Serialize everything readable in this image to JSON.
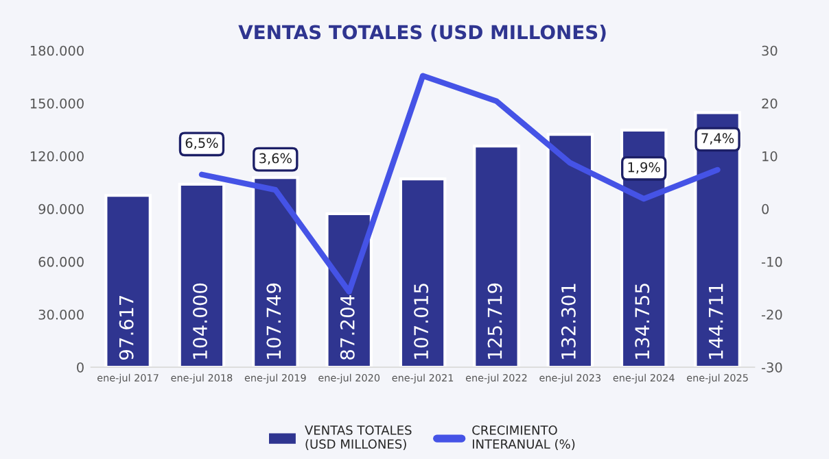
{
  "chart_data": {
    "type": "bar",
    "title": "VENTAS TOTALES (USD MILLONES)",
    "categories": [
      "ene-jul 2017",
      "ene-jul 2018",
      "ene-jul 2019",
      "ene-jul 2020",
      "ene-jul 2021",
      "ene-jul 2022",
      "ene-jul 2023",
      "ene-jul 2024",
      "ene-jul 2025"
    ],
    "series": [
      {
        "name": "VENTAS TOTALES\n(USD MILLONES)",
        "color": "#2f3590",
        "values": [
          97617,
          104000,
          107749,
          87204,
          107015,
          125719,
          132301,
          134755,
          144711
        ],
        "value_labels": [
          "97.617",
          "104.000",
          "107.749",
          "87.204",
          "107.015",
          "125.719",
          "132.301",
          "134.755",
          "144.711"
        ]
      },
      {
        "name": "CRECIMIENTO\nINTERANUAL (%)",
        "type": "line",
        "axis": "y2",
        "color": "#4553e6",
        "values": [
          null,
          6.5,
          3.6,
          -15.7,
          25.2,
          20.4,
          8.7,
          1.9,
          7.4
        ],
        "value_labels": [
          null,
          "6,5%",
          "3,6%",
          null,
          null,
          null,
          null,
          "1,9%",
          "7,4%"
        ]
      }
    ],
    "ylim": [
      0,
      180000
    ],
    "yticks": [
      {
        "value": 0,
        "label": "0"
      },
      {
        "value": 30000,
        "label": "30.000"
      },
      {
        "value": 60000,
        "label": "60.000"
      },
      {
        "value": 90000,
        "label": "90.000"
      },
      {
        "value": 120000,
        "label": "120.000"
      },
      {
        "value": 150000,
        "label": "150.000"
      },
      {
        "value": 180000,
        "label": "180.000"
      }
    ],
    "y2lim": [
      -30,
      30
    ],
    "y2ticks": [
      -30,
      -20,
      -10,
      0,
      10,
      20,
      30
    ],
    "grid": false,
    "legend": "bottom",
    "marker": "none",
    "line_style": "solid"
  }
}
